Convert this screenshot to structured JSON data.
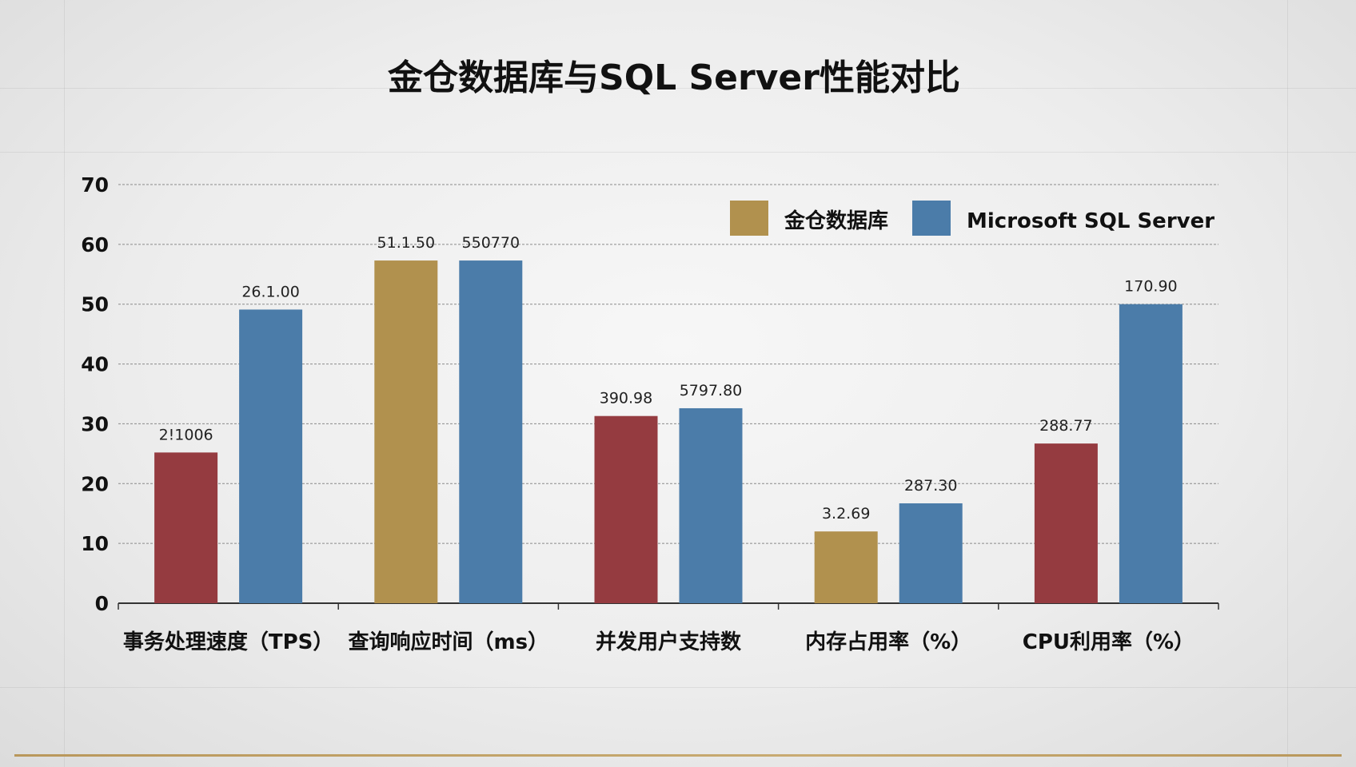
{
  "chart_data": {
    "type": "bar",
    "title": "金仓数据库与SQL Server性能对比",
    "xlabel": "",
    "ylabel": "",
    "ylim": [
      0,
      70
    ],
    "yticks": [
      0,
      10,
      20,
      30,
      40,
      50,
      60,
      70
    ],
    "grid": true,
    "legend_position": "top-right",
    "legend": [
      {
        "name": "金仓数据库",
        "color": "#b1914e"
      },
      {
        "name": "Microsoft SQL Server",
        "color": "#4b7ca9"
      }
    ],
    "categories": [
      "事务处理速度（TPS）",
      "查询响应时间（ms）",
      "并发用户支持数",
      "内存占用率（%）",
      "CPU利用率（%）"
    ],
    "series": [
      {
        "name": "金仓数据库",
        "values": [
          25.2,
          57.3,
          31.3,
          12.0,
          26.7
        ],
        "colors": [
          "#953b40",
          "#b1914e",
          "#953b40",
          "#b1914e",
          "#953b40"
        ],
        "labels": [
          "2!1006",
          "51.1.50",
          "390.98",
          "3.2.69",
          "288.77"
        ]
      },
      {
        "name": "Microsoft SQL Server",
        "values": [
          49.1,
          57.3,
          32.6,
          16.7,
          50.0
        ],
        "colors": [
          "#4b7ca9",
          "#4b7ca9",
          "#4b7ca9",
          "#4b7ca9",
          "#4b7ca9"
        ],
        "labels": [
          "26.1.00",
          "550770",
          "5797.80",
          "287.30",
          "170.90"
        ]
      }
    ]
  }
}
